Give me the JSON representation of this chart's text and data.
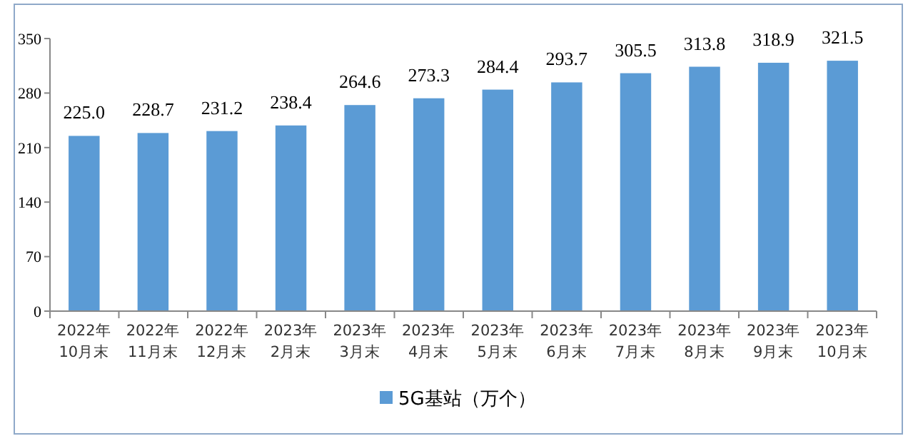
{
  "chart_data": {
    "type": "bar",
    "categories": [
      "2022年\n10月末",
      "2022年\n11月末",
      "2022年\n12月末",
      "2023年\n2月末",
      "2023年\n3月末",
      "2023年\n4月末",
      "2023年\n5月末",
      "2023年\n6月末",
      "2023年\n7月末",
      "2023年\n8月末",
      "2023年\n9月末",
      "2023年\n10月末"
    ],
    "series": [
      {
        "name": "5G基站（万个）",
        "color": "#5b9bd5",
        "values": [
          225.0,
          228.7,
          231.2,
          238.4,
          264.6,
          273.3,
          284.4,
          293.7,
          305.5,
          313.8,
          318.9,
          321.5
        ],
        "value_labels": [
          "225.0",
          "228.7",
          "231.2",
          "238.4",
          "264.6",
          "273.3",
          "284.4",
          "293.7",
          "305.5",
          "313.8",
          "318.9",
          "321.5"
        ]
      }
    ],
    "ylim": [
      0,
      350
    ],
    "yticks": [
      0,
      70,
      140,
      210,
      280,
      350
    ],
    "grid": false,
    "legend": "bottom"
  }
}
